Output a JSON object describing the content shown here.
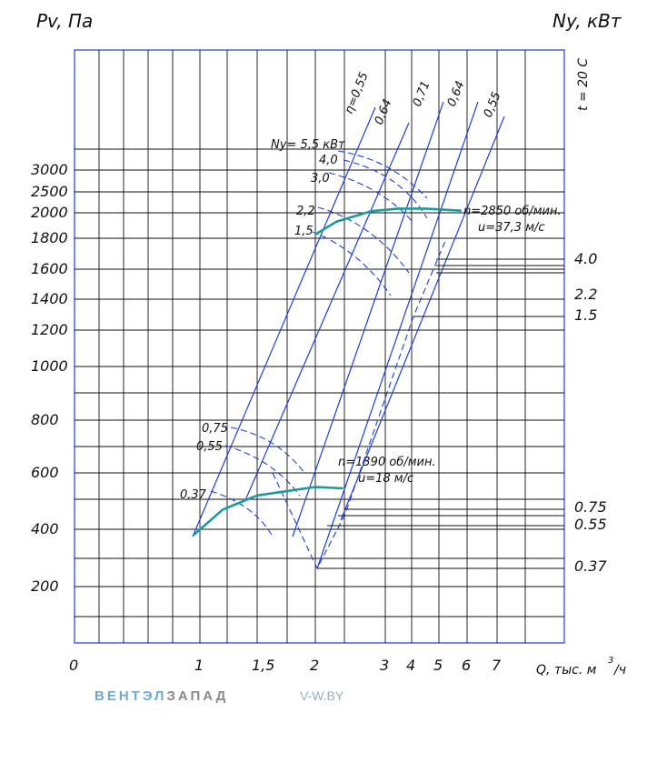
{
  "chart_data": {
    "type": "line",
    "left_axis_title": "Pv, Па",
    "right_axis_title": "Ny, кВт",
    "temperature_label": "t = 20 C",
    "xlabel": "Q, тыс. м",
    "xlabel_sup": "3",
    "xlabel_unit": "/ч",
    "x_ticks": [
      "0",
      "1",
      "1,5",
      "2",
      "3",
      "4",
      "5",
      "6",
      "7"
    ],
    "y_ticks": [
      "200",
      "400",
      "600",
      "800",
      "1000",
      "1200",
      "1400",
      "1600",
      "1800",
      "2000",
      "2500",
      "3000"
    ],
    "right_ticks": [
      "4.0",
      "2.2",
      "1.5",
      "0.75",
      "0.55",
      "0.37"
    ],
    "efficiency_labels": [
      "η=0,55",
      "0,64",
      "0,71",
      "0,64",
      "0,55"
    ],
    "power_labels_high": [
      "Ny= 5,5 кВт",
      "4,0",
      "3,0",
      "2,2",
      "1,5"
    ],
    "power_labels_low": [
      "0,75",
      "0,55",
      "0,37"
    ],
    "series": [
      {
        "name": "n=2850 об/мин.",
        "speed_note": "u=37,3 м/с",
        "color": "#1a9a9a",
        "points": [
          [
            2.0,
            1830
          ],
          [
            2.3,
            1930
          ],
          [
            2.8,
            2040
          ],
          [
            3.5,
            2100
          ],
          [
            4.5,
            2100
          ],
          [
            5.8,
            2050
          ]
        ]
      },
      {
        "name": "n=1390 об/мин.",
        "speed_note": "u=18 м/с",
        "color": "#1a9a9a",
        "points": [
          [
            0.95,
            380
          ],
          [
            1.2,
            470
          ],
          [
            1.5,
            520
          ],
          [
            2.0,
            550
          ],
          [
            2.4,
            545
          ]
        ]
      }
    ]
  },
  "footer": {
    "brand_part1": "ВЕНТЭЛ",
    "brand_part2": "ЗАПАД",
    "site": "V-W.BY"
  }
}
